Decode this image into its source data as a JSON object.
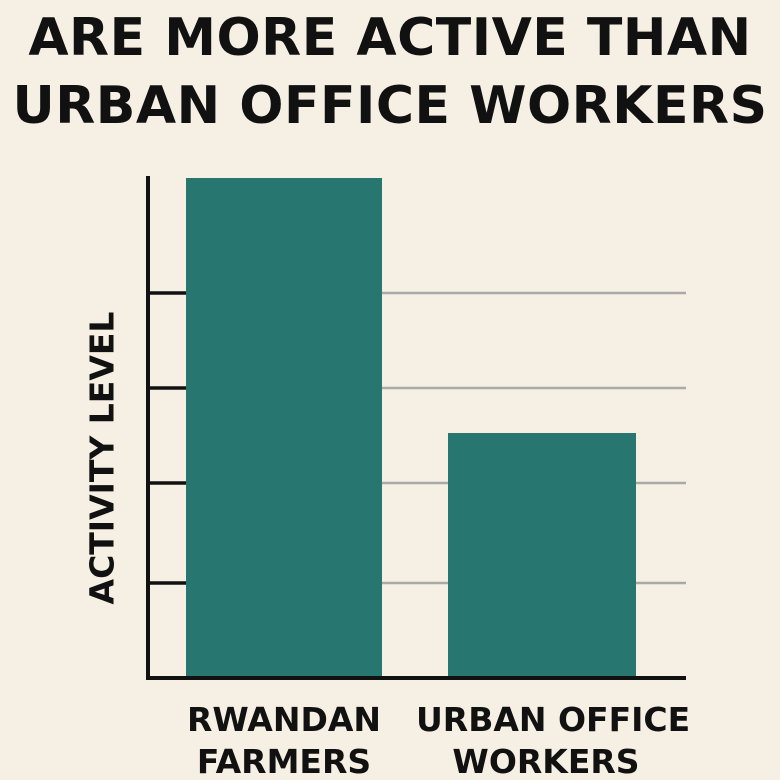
{
  "title_lines": [
    "ARE MORE ACTIVE THAN",
    "URBAN OFFICE WORKERS"
  ],
  "chart_data": {
    "type": "bar",
    "categories": [
      [
        "RWANDAN",
        "FARMERS"
      ],
      [
        "URBAN OFFICE",
        "WORKERS"
      ]
    ],
    "values": [
      100,
      49
    ],
    "ylabel": "ACTIVITY LEVEL",
    "xlabel": "",
    "ylim": [
      0,
      110
    ],
    "grid": true,
    "bar_color": "#287670",
    "axis_color": "#111111",
    "grid_color": "#a9a9a9"
  }
}
